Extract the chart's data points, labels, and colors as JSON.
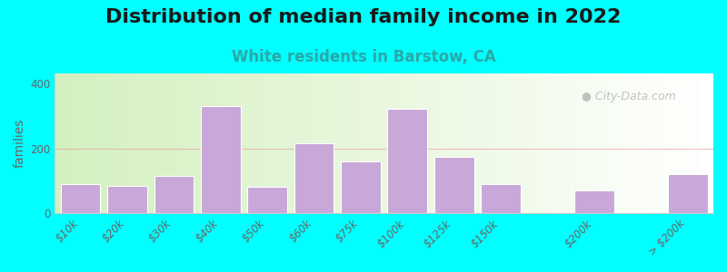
{
  "title": "Distribution of median family income in 2022",
  "subtitle": "White residents in Barstow, CA",
  "ylabel": "families",
  "background_outer": "#00FFFF",
  "bar_color": "#c8a8d8",
  "bar_edge_color": "#ffffff",
  "categories": [
    "$10k",
    "$20k",
    "$30k",
    "$40k",
    "$50k",
    "$60k",
    "$75k",
    "$100k",
    "$125k",
    "$150k",
    "$200k",
    "> $200k"
  ],
  "values": [
    90,
    85,
    115,
    330,
    83,
    215,
    160,
    320,
    175,
    90,
    70,
    120
  ],
  "x_positions": [
    0,
    1,
    2,
    3,
    4,
    5,
    6,
    7,
    8,
    9,
    11,
    13
  ],
  "ylim": [
    0,
    430
  ],
  "yticks": [
    0,
    200,
    400
  ],
  "title_fontsize": 16,
  "subtitle_fontsize": 12,
  "ylabel_fontsize": 10,
  "tick_fontsize": 8.5,
  "watermark": "City-Data.com",
  "hline_y": 200,
  "hline_color": "#e8b0b0"
}
